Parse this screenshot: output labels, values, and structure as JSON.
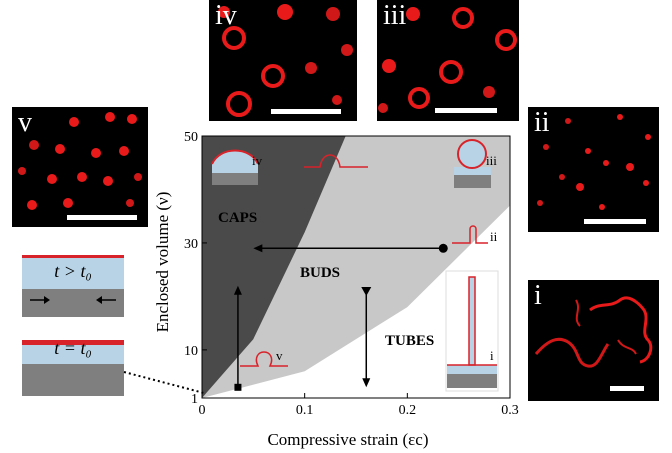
{
  "panels": {
    "iv": {
      "label": "iv"
    },
    "iii": {
      "label": "iii"
    },
    "v": {
      "label": "v"
    },
    "ii": {
      "label": "ii"
    },
    "i": {
      "label": "i"
    }
  },
  "schematics": {
    "expanded": {
      "label": "t > t₀"
    },
    "initial": {
      "label": "t = t₀"
    }
  },
  "chart_data": {
    "type": "phase-diagram",
    "xlabel": "Compressive strain (εc)",
    "ylabel": "Enclosed volume (ν)",
    "xlim": [
      0,
      0.3
    ],
    "ylim": [
      1,
      50
    ],
    "xticks": [
      "0",
      "0.1",
      "0.2",
      "0.3"
    ],
    "yticks": [
      "1",
      "10",
      "30",
      "50"
    ],
    "regions": [
      "CAPS",
      "BUDS",
      "TUBES"
    ],
    "caps_buds_boundary": [
      [
        0,
        1
      ],
      [
        0.05,
        12
      ],
      [
        0.1,
        32
      ],
      [
        0.14,
        50
      ]
    ],
    "buds_tubes_boundary": [
      [
        0,
        1
      ],
      [
        0.1,
        6
      ],
      [
        0.2,
        18
      ],
      [
        0.3,
        37
      ]
    ],
    "markers": [
      {
        "label": "iv",
        "x": 0.065,
        "y": 47
      },
      {
        "label": "iii",
        "x": 0.27,
        "y": 47
      },
      {
        "label": "ii",
        "x": 0.27,
        "y": 31
      },
      {
        "label": "v",
        "x": 0.06,
        "y": 7
      },
      {
        "label": "i",
        "x": 0.29,
        "y": 7
      }
    ],
    "arrows": [
      {
        "from": [
          0.235,
          29
        ],
        "to": [
          0.05,
          29
        ]
      },
      {
        "from": [
          0.035,
          3
        ],
        "to": [
          0.035,
          22
        ]
      },
      {
        "from": [
          0.16,
          21
        ],
        "to": [
          0.16,
          3
        ]
      }
    ]
  }
}
